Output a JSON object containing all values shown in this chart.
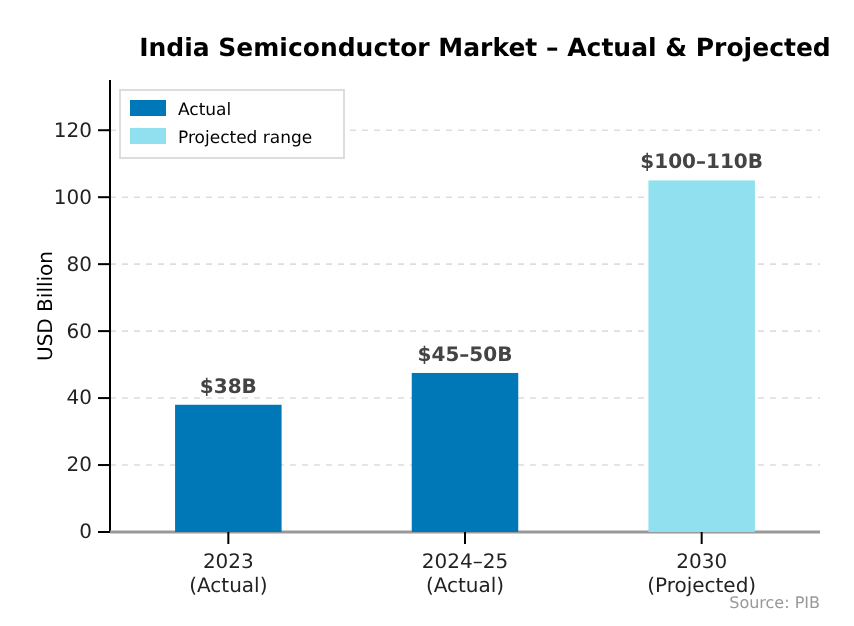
{
  "chart_data": {
    "type": "bar",
    "title": "India Semiconductor Market – Actual & Projected",
    "ylabel": "USD Billion",
    "categories": [
      "2023\n(Actual)",
      "2024–25\n(Actual)",
      "2030\n(Projected)"
    ],
    "series": [
      {
        "name": "Actual",
        "color": "#0077b6",
        "values": [
          38,
          47.5,
          null
        ],
        "value_labels": [
          "$38B",
          "$45–50B",
          null
        ]
      },
      {
        "name": "Projected range",
        "color": "#90e0ef",
        "values": [
          null,
          null,
          105
        ],
        "value_labels": [
          null,
          null,
          "$100–110B"
        ]
      }
    ],
    "ylim": [
      0,
      135
    ],
    "yticks": [
      0,
      20,
      40,
      60,
      80,
      100,
      120
    ],
    "grid": "y",
    "legend": "top left",
    "annotations": [
      "Source: PIB"
    ]
  }
}
